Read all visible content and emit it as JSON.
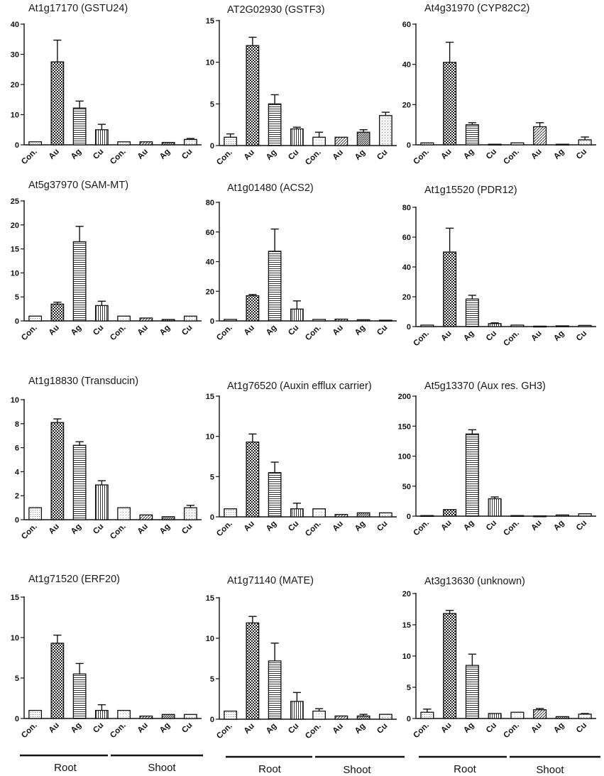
{
  "chart_data": [
    {
      "type": "bar",
      "title": "At1g17170 (GSTU24)",
      "categories": [
        "Con.",
        "Au",
        "Ag",
        "Cu",
        "Con.",
        "Au",
        "Ag",
        "Cu"
      ],
      "values": [
        1,
        27.5,
        12.2,
        5,
        1,
        1,
        0.8,
        1.8
      ],
      "errors": [
        0,
        7.2,
        2.3,
        1.8,
        0,
        0,
        0,
        0.3
      ],
      "ylim": [
        0,
        40
      ],
      "yticks": [
        0,
        10,
        20,
        30,
        40
      ],
      "xlabel": "",
      "ylabel": ""
    },
    {
      "type": "bar",
      "title": "AT2G02930 (GSTF3)",
      "categories": [
        "Con.",
        "Au",
        "Ag",
        "Cu",
        "Con.",
        "Au",
        "Ag",
        "Cu"
      ],
      "values": [
        1,
        12,
        5,
        2,
        1,
        1,
        1.6,
        3.6
      ],
      "errors": [
        0.4,
        1,
        1.1,
        0.2,
        0.6,
        0,
        0.3,
        0.4
      ],
      "ylim": [
        0,
        15
      ],
      "yticks": [
        0,
        5,
        10,
        15
      ],
      "xlabel": "",
      "ylabel": ""
    },
    {
      "type": "bar",
      "title": "At4g31970 (CYP82C2)",
      "categories": [
        "Con.",
        "Au",
        "Ag",
        "Cu",
        "Con.",
        "Au",
        "Ag",
        "Cu"
      ],
      "values": [
        1,
        41,
        10,
        0.3,
        1,
        9,
        0.3,
        2.5
      ],
      "errors": [
        0,
        10,
        1,
        0,
        0,
        2,
        0,
        1.4
      ],
      "ylim": [
        0,
        60
      ],
      "yticks": [
        0,
        20,
        40,
        60
      ],
      "xlabel": "",
      "ylabel": ""
    },
    {
      "type": "bar",
      "title": "At5g37970 (SAM-MT)",
      "categories": [
        "Con.",
        "Au",
        "Ag",
        "Cu",
        "Con.",
        "Au",
        "Ag",
        "Cu"
      ],
      "values": [
        1,
        3.5,
        16.5,
        3.2,
        1,
        0.6,
        0.3,
        1
      ],
      "errors": [
        0,
        0.4,
        3.2,
        0.9,
        0,
        0,
        0,
        0
      ],
      "ylim": [
        0,
        25
      ],
      "yticks": [
        0,
        5,
        10,
        15,
        20,
        25
      ],
      "xlabel": "",
      "ylabel": ""
    },
    {
      "type": "bar",
      "title": "At1g01480 (ACS2)",
      "categories": [
        "Con.",
        "Au",
        "Ag",
        "Cu",
        "Con.",
        "Au",
        "Ag",
        "Cu"
      ],
      "values": [
        1,
        17,
        47,
        8,
        1,
        1.2,
        0.8,
        0.5
      ],
      "errors": [
        0,
        0.8,
        15,
        5.5,
        0,
        0,
        0,
        0
      ],
      "ylim": [
        0,
        80
      ],
      "yticks": [
        0,
        20,
        40,
        60,
        80
      ],
      "xlabel": "",
      "ylabel": ""
    },
    {
      "type": "bar",
      "title": "At1g15520 (PDR12)",
      "categories": [
        "Con.",
        "Au",
        "Ag",
        "Cu",
        "Con.",
        "Au",
        "Ag",
        "Cu"
      ],
      "values": [
        1,
        50,
        18.5,
        2,
        1,
        0.3,
        0.5,
        0.8
      ],
      "errors": [
        0,
        16,
        2.5,
        0.5,
        0,
        0,
        0,
        0
      ],
      "ylim": [
        0,
        80
      ],
      "yticks": [
        0,
        20,
        40,
        60,
        80
      ],
      "xlabel": "",
      "ylabel": ""
    },
    {
      "type": "bar",
      "title": "At1g18830 (Transducin)",
      "categories": [
        "Con.",
        "Au",
        "Ag",
        "Cu",
        "Con.",
        "Au",
        "Ag",
        "Cu"
      ],
      "values": [
        1,
        8.1,
        6.2,
        2.9,
        1,
        0.4,
        0.25,
        1
      ],
      "errors": [
        0,
        0.3,
        0.3,
        0.35,
        0,
        0,
        0,
        0.2
      ],
      "ylim": [
        0,
        10
      ],
      "yticks": [
        0,
        2,
        4,
        6,
        8,
        10
      ],
      "xlabel": "",
      "ylabel": ""
    },
    {
      "type": "bar",
      "title": "At1g76520 (Auxin efflux carrier)",
      "categories": [
        "Con.",
        "Au",
        "Ag",
        "Cu",
        "Con.",
        "Au",
        "Ag",
        "Cu"
      ],
      "values": [
        1,
        9.3,
        5.5,
        1,
        1,
        0.3,
        0.5,
        0.5
      ],
      "errors": [
        0,
        1,
        1.3,
        0.7,
        0,
        0,
        0,
        0
      ],
      "ylim": [
        0,
        15
      ],
      "yticks": [
        0,
        5,
        10,
        15
      ],
      "xlabel": "",
      "ylabel": ""
    },
    {
      "type": "bar",
      "title": "At5g13370 (Aux res. GH3)",
      "categories": [
        "Con.",
        "Au",
        "Ag",
        "Cu",
        "Con.",
        "Au",
        "Ag",
        "Cu"
      ],
      "values": [
        1,
        11,
        137,
        29,
        1,
        0.5,
        2,
        4
      ],
      "errors": [
        0,
        0,
        7,
        3,
        0,
        0,
        0,
        0
      ],
      "ylim": [
        0,
        200
      ],
      "yticks": [
        0,
        50,
        100,
        150,
        200
      ],
      "xlabel": "",
      "ylabel": ""
    },
    {
      "type": "bar",
      "title": "At1g71520 (ERF20)",
      "categories": [
        "Con.",
        "Au",
        "Ag",
        "Cu",
        "Con.",
        "Au",
        "Ag",
        "Cu"
      ],
      "values": [
        1,
        9.3,
        5.5,
        1,
        1,
        0.3,
        0.5,
        0.5
      ],
      "errors": [
        0,
        1,
        1.3,
        0.7,
        0,
        0,
        0,
        0
      ],
      "ylim": [
        0,
        15
      ],
      "yticks": [
        0,
        5,
        10,
        15
      ],
      "xlabel": "",
      "ylabel": ""
    },
    {
      "type": "bar",
      "title": "At1g71140 (MATE)",
      "categories": [
        "Con.",
        "Au",
        "Ag",
        "Cu",
        "Con.",
        "Au",
        "Ag",
        "Cu"
      ],
      "values": [
        1,
        11.9,
        7.2,
        2.2,
        1,
        0.4,
        0.4,
        0.6
      ],
      "errors": [
        0,
        0.8,
        2.2,
        1.1,
        0.3,
        0,
        0.2,
        0
      ],
      "ylim": [
        0,
        15
      ],
      "yticks": [
        0,
        5,
        10,
        15
      ],
      "xlabel": "",
      "ylabel": ""
    },
    {
      "type": "bar",
      "title": "At3g13630 (unknown)",
      "categories": [
        "Con.",
        "Au",
        "Ag",
        "Cu",
        "Con.",
        "Au",
        "Ag",
        "Cu"
      ],
      "values": [
        1,
        16.8,
        8.5,
        0.8,
        1,
        1.4,
        0.3,
        0.7
      ],
      "errors": [
        0.5,
        0.5,
        1.8,
        0,
        0,
        0.2,
        0,
        0.1
      ],
      "ylim": [
        0,
        20
      ],
      "yticks": [
        0,
        5,
        10,
        15,
        20
      ],
      "xlabel": "",
      "ylabel": ""
    }
  ],
  "groups": [
    {
      "root": "Root",
      "shoot": "Shoot"
    },
    {
      "root": "Root",
      "shoot": "Shoot"
    },
    {
      "root": "Root",
      "shoot": "Shoot"
    }
  ]
}
